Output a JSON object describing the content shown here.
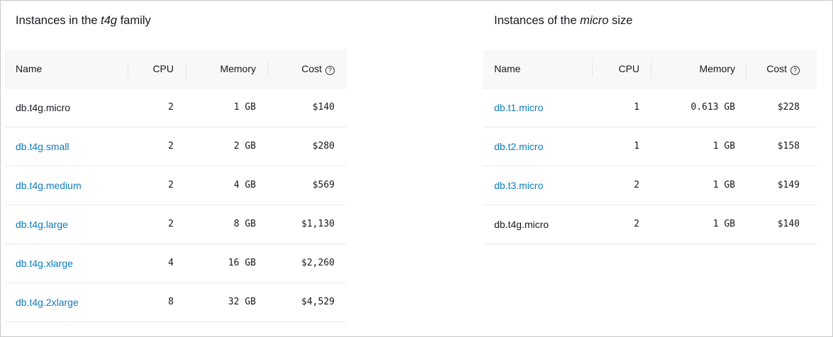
{
  "left": {
    "title_prefix": "Instances in the ",
    "title_em": "t4g",
    "title_suffix": " family",
    "columns": {
      "name": "Name",
      "cpu": "CPU",
      "memory": "Memory",
      "cost": "Cost"
    },
    "rows": [
      {
        "name": "db.t4g.micro",
        "link": false,
        "cpu": "2",
        "memory": "1 GB",
        "cost": "$140"
      },
      {
        "name": "db.t4g.small",
        "link": true,
        "cpu": "2",
        "memory": "2 GB",
        "cost": "$280"
      },
      {
        "name": "db.t4g.medium",
        "link": true,
        "cpu": "2",
        "memory": "4 GB",
        "cost": "$569"
      },
      {
        "name": "db.t4g.large",
        "link": true,
        "cpu": "2",
        "memory": "8 GB",
        "cost": "$1,130"
      },
      {
        "name": "db.t4g.xlarge",
        "link": true,
        "cpu": "4",
        "memory": "16 GB",
        "cost": "$2,260"
      },
      {
        "name": "db.t4g.2xlarge",
        "link": true,
        "cpu": "8",
        "memory": "32 GB",
        "cost": "$4,529"
      }
    ]
  },
  "right": {
    "title_prefix": "Instances of the ",
    "title_em": "micro",
    "title_suffix": " size",
    "columns": {
      "name": "Name",
      "cpu": "CPU",
      "memory": "Memory",
      "cost": "Cost"
    },
    "rows": [
      {
        "name": "db.t1.micro",
        "link": true,
        "cpu": "1",
        "memory": "0.613 GB",
        "cost": "$228"
      },
      {
        "name": "db.t2.micro",
        "link": true,
        "cpu": "1",
        "memory": "1 GB",
        "cost": "$158"
      },
      {
        "name": "db.t3.micro",
        "link": true,
        "cpu": "2",
        "memory": "1 GB",
        "cost": "$149"
      },
      {
        "name": "db.t4g.micro",
        "link": false,
        "cpu": "2",
        "memory": "1 GB",
        "cost": "$140"
      }
    ]
  },
  "icons": {
    "help": "question-circle-icon"
  },
  "colors": {
    "link": "#0f7bbd",
    "header_bg": "#f8f8f8"
  }
}
